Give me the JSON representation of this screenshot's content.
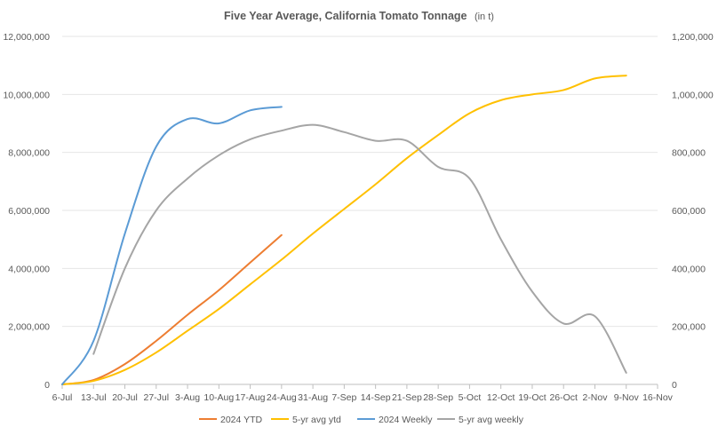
{
  "chart_data": {
    "type": "line",
    "title": "Five Year Average, California Tomato Tonnage",
    "title_unit": "(in t)",
    "categories": [
      "6-Jul",
      "13-Jul",
      "20-Jul",
      "27-Jul",
      "3-Aug",
      "10-Aug",
      "17-Aug",
      "24-Aug",
      "31-Aug",
      "7-Sep",
      "14-Sep",
      "21-Sep",
      "28-Sep",
      "5-Oct",
      "12-Oct",
      "19-Oct",
      "26-Oct",
      "2-Nov",
      "9-Nov",
      "16-Nov"
    ],
    "y_left": {
      "min": 0,
      "max": 12000000,
      "ticks": [
        0,
        2000000,
        4000000,
        6000000,
        8000000,
        10000000,
        12000000
      ],
      "tick_labels": [
        "0",
        "2,000,000",
        "4,000,000",
        "6,000,000",
        "8,000,000",
        "10,000,000",
        "12,000,000"
      ]
    },
    "y_right": {
      "min": 0,
      "max": 1200000,
      "ticks": [
        0,
        200000,
        400000,
        600000,
        800000,
        1000000,
        1200000
      ],
      "tick_labels": [
        "0",
        "200,000",
        "400,000",
        "600,000",
        "800,000",
        "1,000,000",
        "1,200,000"
      ]
    },
    "grid": true,
    "legend_position": "bottom",
    "series": [
      {
        "name": "2024 YTD",
        "axis": "left",
        "color": "#ed7d31",
        "x": [
          0,
          1,
          2,
          3,
          4,
          5,
          6,
          7
        ],
        "values": [
          0,
          150000,
          700000,
          1500000,
          2400000,
          3250000,
          4200000,
          5150000
        ]
      },
      {
        "name": "5-yr avg ytd",
        "axis": "left",
        "color": "#ffc000",
        "x": [
          0,
          1,
          2,
          3,
          4,
          5,
          6,
          7,
          8,
          9,
          10,
          11,
          12,
          13,
          14,
          15,
          16,
          17,
          18
        ],
        "values": [
          0,
          120000,
          500000,
          1100000,
          1850000,
          2600000,
          3450000,
          4300000,
          5200000,
          6050000,
          6900000,
          7800000,
          8600000,
          9350000,
          9800000,
          10000000,
          10150000,
          10550000,
          10650000
        ]
      },
      {
        "name": "2024 Weekly",
        "axis": "right",
        "color": "#5b9bd5",
        "x": [
          0,
          1,
          2,
          3,
          4,
          5,
          6,
          7
        ],
        "values": [
          0,
          150000,
          520000,
          820000,
          915000,
          900000,
          945000,
          957000
        ]
      },
      {
        "name": "5-yr avg weekly",
        "axis": "right",
        "color": "#a5a5a5",
        "x": [
          1,
          2,
          3,
          4,
          5,
          6,
          7,
          8,
          9,
          10,
          11,
          12,
          13,
          14,
          15,
          16,
          17,
          18
        ],
        "values": [
          105000,
          400000,
          600000,
          710000,
          790000,
          845000,
          875000,
          895000,
          870000,
          840000,
          840000,
          750000,
          710000,
          500000,
          320000,
          210000,
          235000,
          40000
        ]
      }
    ]
  }
}
